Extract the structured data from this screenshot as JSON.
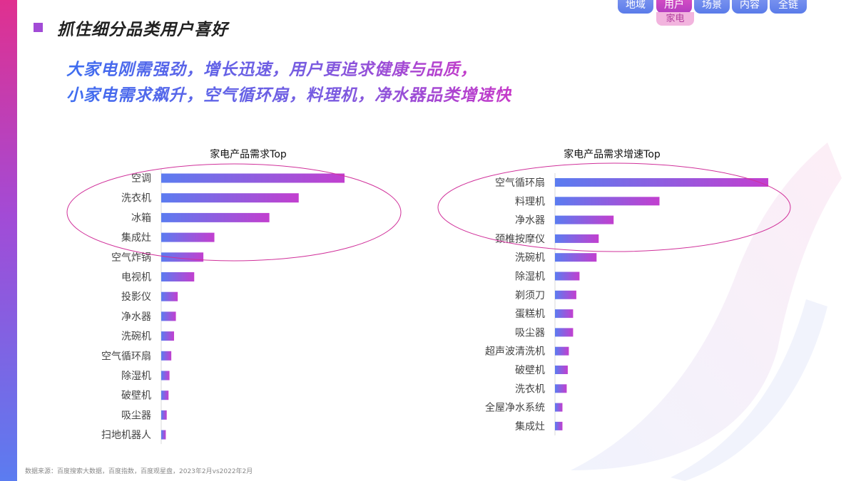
{
  "header": {
    "title": "抓住细分品类用户喜好",
    "headline_line1": "大家电刚需强劲，增长迅速，用户更追求健康与品质，",
    "headline_line2": "小家电需求飙升，空气循环扇，料理机，净水器品类增速快"
  },
  "tabs": [
    {
      "label": "地域",
      "active": false
    },
    {
      "label": "用户",
      "active": true
    },
    {
      "label": "场景",
      "active": false
    },
    {
      "label": "内容",
      "active": false
    },
    {
      "label": "全链",
      "active": false
    }
  ],
  "subtab": {
    "label": "家电"
  },
  "footer": {
    "source": "数据来源：百度搜索大数据，百度指数，百度观星盘，2023年2月vs2022年2月"
  },
  "colors": {
    "bar_start": "#5b7cf0",
    "bar_end": "#c23fcf",
    "ellipse": "#d0309a",
    "accent": "#a24bd6"
  },
  "chart_data": [
    {
      "type": "bar",
      "orientation": "horizontal",
      "title": "家电产品需求Top",
      "categories": [
        "空调",
        "洗衣机",
        "冰箱",
        "集成灶",
        "空气炸锅",
        "电视机",
        "投影仪",
        "净水器",
        "洗碗机",
        "空气循环扇",
        "除湿机",
        "破壁机",
        "吸尘器",
        "扫地机器人"
      ],
      "values": [
        100,
        75,
        59,
        29,
        23,
        18,
        9,
        8,
        7,
        5.5,
        4.5,
        4,
        3,
        2.5
      ],
      "highlight_top": 4
    },
    {
      "type": "bar",
      "orientation": "horizontal",
      "title": "家电产品需求增速Top",
      "categories": [
        "空气循环扇",
        "料理机",
        "净水器",
        "颈椎按摩仪",
        "洗碗机",
        "除湿机",
        "剃须刀",
        "蛋糕机",
        "吸尘器",
        "超声波清洗机",
        "破壁机",
        "洗衣机",
        "全屋净水系统",
        "集成灶"
      ],
      "values": [
        100,
        49,
        27.5,
        20.5,
        19.5,
        11.5,
        10,
        8.5,
        8.5,
        6.5,
        6,
        5.5,
        3.5,
        3.5
      ],
      "highlight_top": 4
    }
  ]
}
